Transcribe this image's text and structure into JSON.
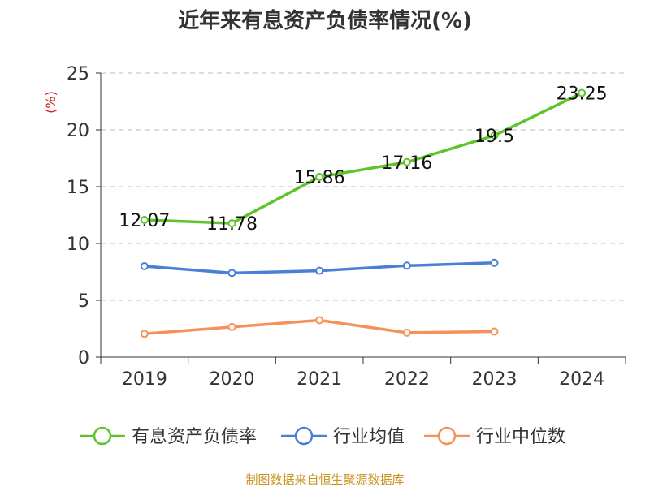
{
  "chart_data": {
    "type": "line",
    "title": "近年来有息资产负债率情况(%)",
    "ylabel": "(%)",
    "ylim": [
      0,
      25
    ],
    "yticks": [
      "0",
      "5",
      "10",
      "15",
      "20",
      "25"
    ],
    "categories": [
      "2019",
      "2020",
      "2021",
      "2022",
      "2023",
      "2024"
    ],
    "grid": true,
    "legend_position": "bottom",
    "series": [
      {
        "name": "有息资产负债率",
        "color": "#5ec42a",
        "values": [
          12.07,
          11.78,
          15.86,
          17.16,
          19.5,
          23.25
        ],
        "labels": [
          "12.07",
          "11.78",
          "15.86",
          "17.16",
          "19.5",
          "23.25"
        ]
      },
      {
        "name": "行业均值",
        "color": "#4a7fd8",
        "values": [
          8.0,
          7.4,
          7.6,
          8.05,
          8.3,
          null
        ]
      },
      {
        "name": "行业中位数",
        "color": "#f5915a",
        "values": [
          2.05,
          2.65,
          3.25,
          2.15,
          2.25,
          null
        ]
      }
    ],
    "source": "制图数据来自恒生聚源数据库",
    "colors": {
      "ylabel": "#d02020",
      "source": "#c8921e",
      "grid": "#bbbbbb",
      "axis": "#333333"
    }
  }
}
